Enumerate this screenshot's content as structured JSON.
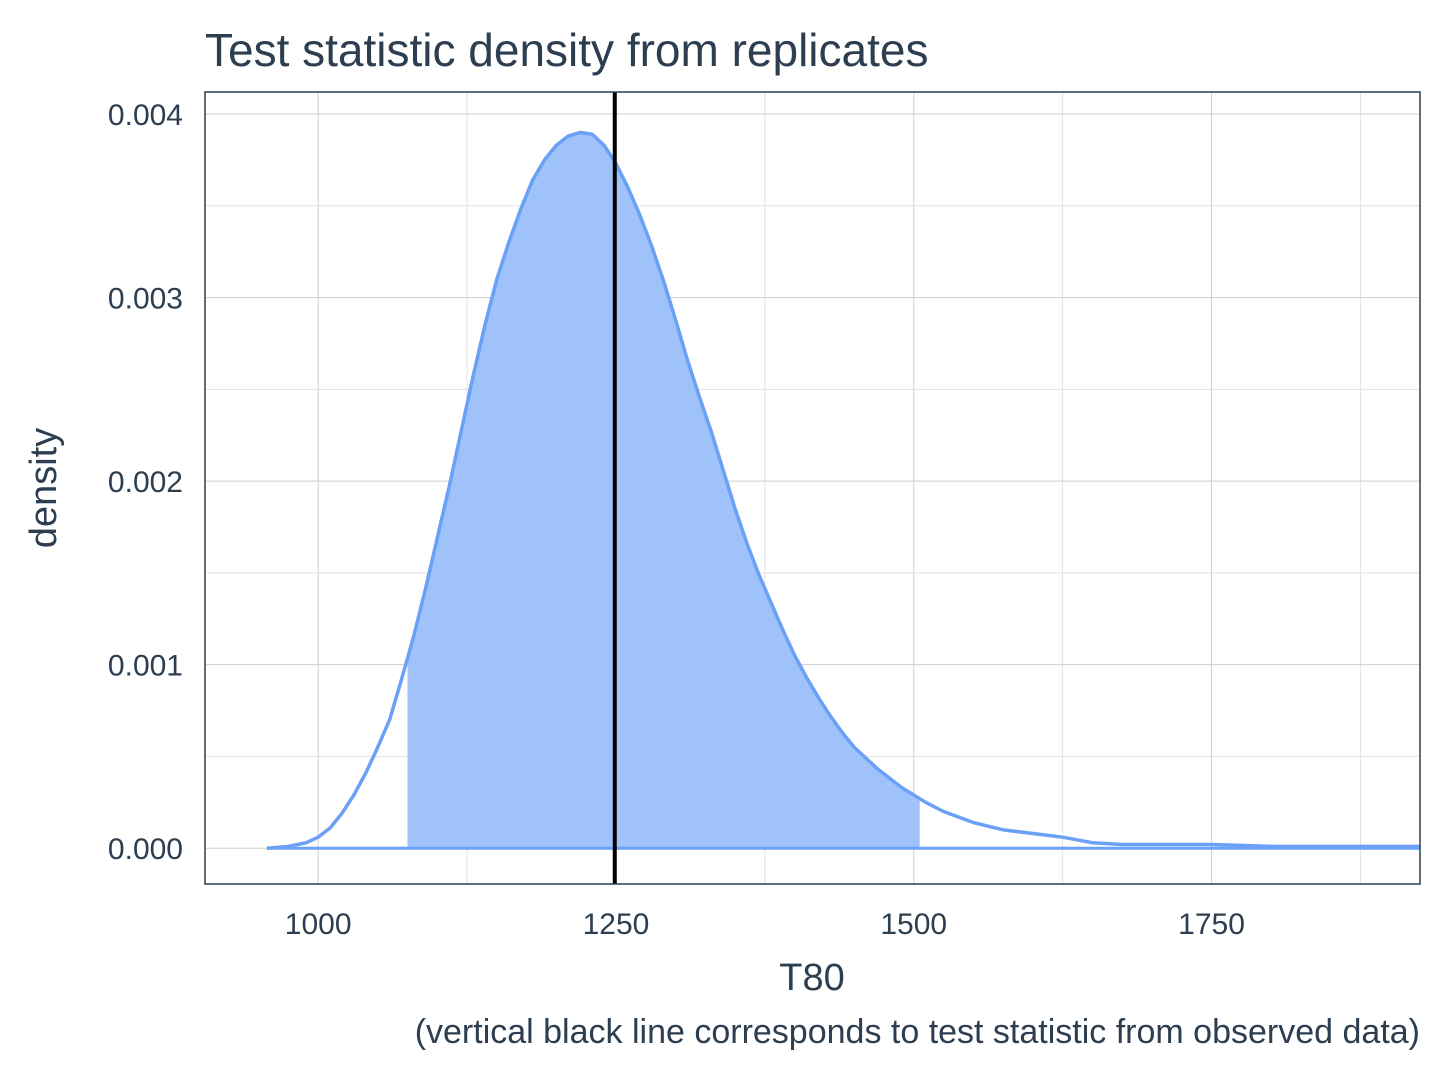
{
  "chart_data": {
    "type": "area",
    "title": "Test statistic density from replicates",
    "xlabel": "T80",
    "ylabel": "density",
    "caption": "(vertical black line corresponds to test statistic from observed data)",
    "xlim": [
      905,
      1925
    ],
    "ylim": [
      -0.000195,
      0.00412
    ],
    "x_ticks": [
      1000,
      1250,
      1500,
      1750
    ],
    "x_tick_labels": [
      "1000",
      "1250",
      "1500",
      "1750"
    ],
    "y_ticks": [
      0,
      0.001,
      0.002,
      0.003,
      0.004
    ],
    "y_tick_labels": [
      "0.000",
      "0.001",
      "0.002",
      "0.003",
      "0.004"
    ],
    "grid": true,
    "legend": "none",
    "series": [
      {
        "x": [
          957,
          975,
          990,
          1000,
          1010,
          1020,
          1030,
          1040,
          1050,
          1060,
          1070,
          1080,
          1090,
          1100,
          1110,
          1120,
          1130,
          1140,
          1150,
          1160,
          1170,
          1180,
          1190,
          1200,
          1210,
          1220,
          1230,
          1240,
          1250,
          1260,
          1270,
          1280,
          1290,
          1300,
          1310,
          1320,
          1330,
          1340,
          1350,
          1360,
          1370,
          1380,
          1390,
          1400,
          1410,
          1420,
          1430,
          1440,
          1450,
          1460,
          1470,
          1480,
          1490,
          1500,
          1510,
          1525,
          1550,
          1575,
          1600,
          1625,
          1650,
          1675,
          1700,
          1725,
          1750,
          1800,
          1850,
          1900,
          1925
        ],
        "y": [
          0.0,
          1e-05,
          3e-05,
          6e-05,
          0.00011,
          0.00019,
          0.00029,
          0.00041,
          0.00055,
          0.0007,
          0.00092,
          0.00115,
          0.00141,
          0.00169,
          0.00197,
          0.00227,
          0.00257,
          0.00285,
          0.0031,
          0.0033,
          0.00348,
          0.00364,
          0.00375,
          0.00383,
          0.00388,
          0.0039,
          0.00389,
          0.00383,
          0.00373,
          0.0036,
          0.00345,
          0.00328,
          0.00309,
          0.00288,
          0.00266,
          0.00246,
          0.00227,
          0.00206,
          0.00185,
          0.00166,
          0.00149,
          0.00134,
          0.00119,
          0.00105,
          0.00093,
          0.00082,
          0.00072,
          0.00063,
          0.00055,
          0.00049,
          0.00043,
          0.00038,
          0.00033,
          0.00029,
          0.00025,
          0.0002,
          0.00014,
          0.0001,
          8e-05,
          6e-05,
          3e-05,
          2e-05,
          2e-05,
          2e-05,
          2e-05,
          1e-05,
          1e-05,
          1e-05,
          1e-05
        ]
      }
    ],
    "shaded_interval": [
      1075,
      1505
    ],
    "observed_statistic": 1249,
    "colors": {
      "density_line": "#6aa0f5",
      "density_fill": "#9fc2fb",
      "observed_line": "#000000"
    }
  }
}
